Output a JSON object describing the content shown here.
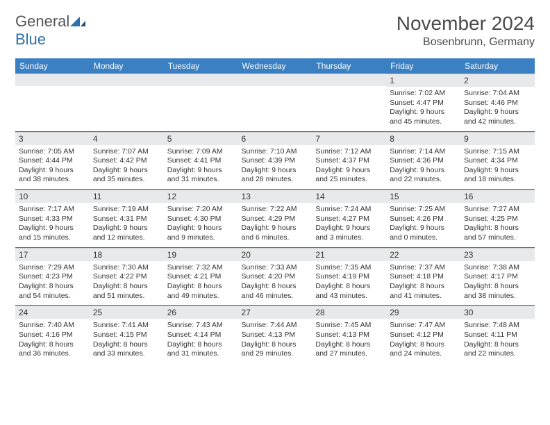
{
  "logo": {
    "text_general": "General",
    "text_blue": "Blue"
  },
  "title": "November 2024",
  "location": "Bosenbrunn, Germany",
  "day_headers": [
    "Sunday",
    "Monday",
    "Tuesday",
    "Wednesday",
    "Thursday",
    "Friday",
    "Saturday"
  ],
  "colors": {
    "header_bg": "#3a80c3",
    "header_text": "#ffffff",
    "daynum_bg": "#e8e9ea",
    "border": "#2f6fa8",
    "logo_blue": "#2f6fa8"
  },
  "weeks": [
    [
      {
        "day": "",
        "sunrise": "",
        "sunset": "",
        "daylight": ""
      },
      {
        "day": "",
        "sunrise": "",
        "sunset": "",
        "daylight": ""
      },
      {
        "day": "",
        "sunrise": "",
        "sunset": "",
        "daylight": ""
      },
      {
        "day": "",
        "sunrise": "",
        "sunset": "",
        "daylight": ""
      },
      {
        "day": "",
        "sunrise": "",
        "sunset": "",
        "daylight": ""
      },
      {
        "day": "1",
        "sunrise": "Sunrise: 7:02 AM",
        "sunset": "Sunset: 4:47 PM",
        "daylight": "Daylight: 9 hours and 45 minutes."
      },
      {
        "day": "2",
        "sunrise": "Sunrise: 7:04 AM",
        "sunset": "Sunset: 4:46 PM",
        "daylight": "Daylight: 9 hours and 42 minutes."
      }
    ],
    [
      {
        "day": "3",
        "sunrise": "Sunrise: 7:05 AM",
        "sunset": "Sunset: 4:44 PM",
        "daylight": "Daylight: 9 hours and 38 minutes."
      },
      {
        "day": "4",
        "sunrise": "Sunrise: 7:07 AM",
        "sunset": "Sunset: 4:42 PM",
        "daylight": "Daylight: 9 hours and 35 minutes."
      },
      {
        "day": "5",
        "sunrise": "Sunrise: 7:09 AM",
        "sunset": "Sunset: 4:41 PM",
        "daylight": "Daylight: 9 hours and 31 minutes."
      },
      {
        "day": "6",
        "sunrise": "Sunrise: 7:10 AM",
        "sunset": "Sunset: 4:39 PM",
        "daylight": "Daylight: 9 hours and 28 minutes."
      },
      {
        "day": "7",
        "sunrise": "Sunrise: 7:12 AM",
        "sunset": "Sunset: 4:37 PM",
        "daylight": "Daylight: 9 hours and 25 minutes."
      },
      {
        "day": "8",
        "sunrise": "Sunrise: 7:14 AM",
        "sunset": "Sunset: 4:36 PM",
        "daylight": "Daylight: 9 hours and 22 minutes."
      },
      {
        "day": "9",
        "sunrise": "Sunrise: 7:15 AM",
        "sunset": "Sunset: 4:34 PM",
        "daylight": "Daylight: 9 hours and 18 minutes."
      }
    ],
    [
      {
        "day": "10",
        "sunrise": "Sunrise: 7:17 AM",
        "sunset": "Sunset: 4:33 PM",
        "daylight": "Daylight: 9 hours and 15 minutes."
      },
      {
        "day": "11",
        "sunrise": "Sunrise: 7:19 AM",
        "sunset": "Sunset: 4:31 PM",
        "daylight": "Daylight: 9 hours and 12 minutes."
      },
      {
        "day": "12",
        "sunrise": "Sunrise: 7:20 AM",
        "sunset": "Sunset: 4:30 PM",
        "daylight": "Daylight: 9 hours and 9 minutes."
      },
      {
        "day": "13",
        "sunrise": "Sunrise: 7:22 AM",
        "sunset": "Sunset: 4:29 PM",
        "daylight": "Daylight: 9 hours and 6 minutes."
      },
      {
        "day": "14",
        "sunrise": "Sunrise: 7:24 AM",
        "sunset": "Sunset: 4:27 PM",
        "daylight": "Daylight: 9 hours and 3 minutes."
      },
      {
        "day": "15",
        "sunrise": "Sunrise: 7:25 AM",
        "sunset": "Sunset: 4:26 PM",
        "daylight": "Daylight: 9 hours and 0 minutes."
      },
      {
        "day": "16",
        "sunrise": "Sunrise: 7:27 AM",
        "sunset": "Sunset: 4:25 PM",
        "daylight": "Daylight: 8 hours and 57 minutes."
      }
    ],
    [
      {
        "day": "17",
        "sunrise": "Sunrise: 7:29 AM",
        "sunset": "Sunset: 4:23 PM",
        "daylight": "Daylight: 8 hours and 54 minutes."
      },
      {
        "day": "18",
        "sunrise": "Sunrise: 7:30 AM",
        "sunset": "Sunset: 4:22 PM",
        "daylight": "Daylight: 8 hours and 51 minutes."
      },
      {
        "day": "19",
        "sunrise": "Sunrise: 7:32 AM",
        "sunset": "Sunset: 4:21 PM",
        "daylight": "Daylight: 8 hours and 49 minutes."
      },
      {
        "day": "20",
        "sunrise": "Sunrise: 7:33 AM",
        "sunset": "Sunset: 4:20 PM",
        "daylight": "Daylight: 8 hours and 46 minutes."
      },
      {
        "day": "21",
        "sunrise": "Sunrise: 7:35 AM",
        "sunset": "Sunset: 4:19 PM",
        "daylight": "Daylight: 8 hours and 43 minutes."
      },
      {
        "day": "22",
        "sunrise": "Sunrise: 7:37 AM",
        "sunset": "Sunset: 4:18 PM",
        "daylight": "Daylight: 8 hours and 41 minutes."
      },
      {
        "day": "23",
        "sunrise": "Sunrise: 7:38 AM",
        "sunset": "Sunset: 4:17 PM",
        "daylight": "Daylight: 8 hours and 38 minutes."
      }
    ],
    [
      {
        "day": "24",
        "sunrise": "Sunrise: 7:40 AM",
        "sunset": "Sunset: 4:16 PM",
        "daylight": "Daylight: 8 hours and 36 minutes."
      },
      {
        "day": "25",
        "sunrise": "Sunrise: 7:41 AM",
        "sunset": "Sunset: 4:15 PM",
        "daylight": "Daylight: 8 hours and 33 minutes."
      },
      {
        "day": "26",
        "sunrise": "Sunrise: 7:43 AM",
        "sunset": "Sunset: 4:14 PM",
        "daylight": "Daylight: 8 hours and 31 minutes."
      },
      {
        "day": "27",
        "sunrise": "Sunrise: 7:44 AM",
        "sunset": "Sunset: 4:13 PM",
        "daylight": "Daylight: 8 hours and 29 minutes."
      },
      {
        "day": "28",
        "sunrise": "Sunrise: 7:45 AM",
        "sunset": "Sunset: 4:13 PM",
        "daylight": "Daylight: 8 hours and 27 minutes."
      },
      {
        "day": "29",
        "sunrise": "Sunrise: 7:47 AM",
        "sunset": "Sunset: 4:12 PM",
        "daylight": "Daylight: 8 hours and 24 minutes."
      },
      {
        "day": "30",
        "sunrise": "Sunrise: 7:48 AM",
        "sunset": "Sunset: 4:11 PM",
        "daylight": "Daylight: 8 hours and 22 minutes."
      }
    ]
  ]
}
